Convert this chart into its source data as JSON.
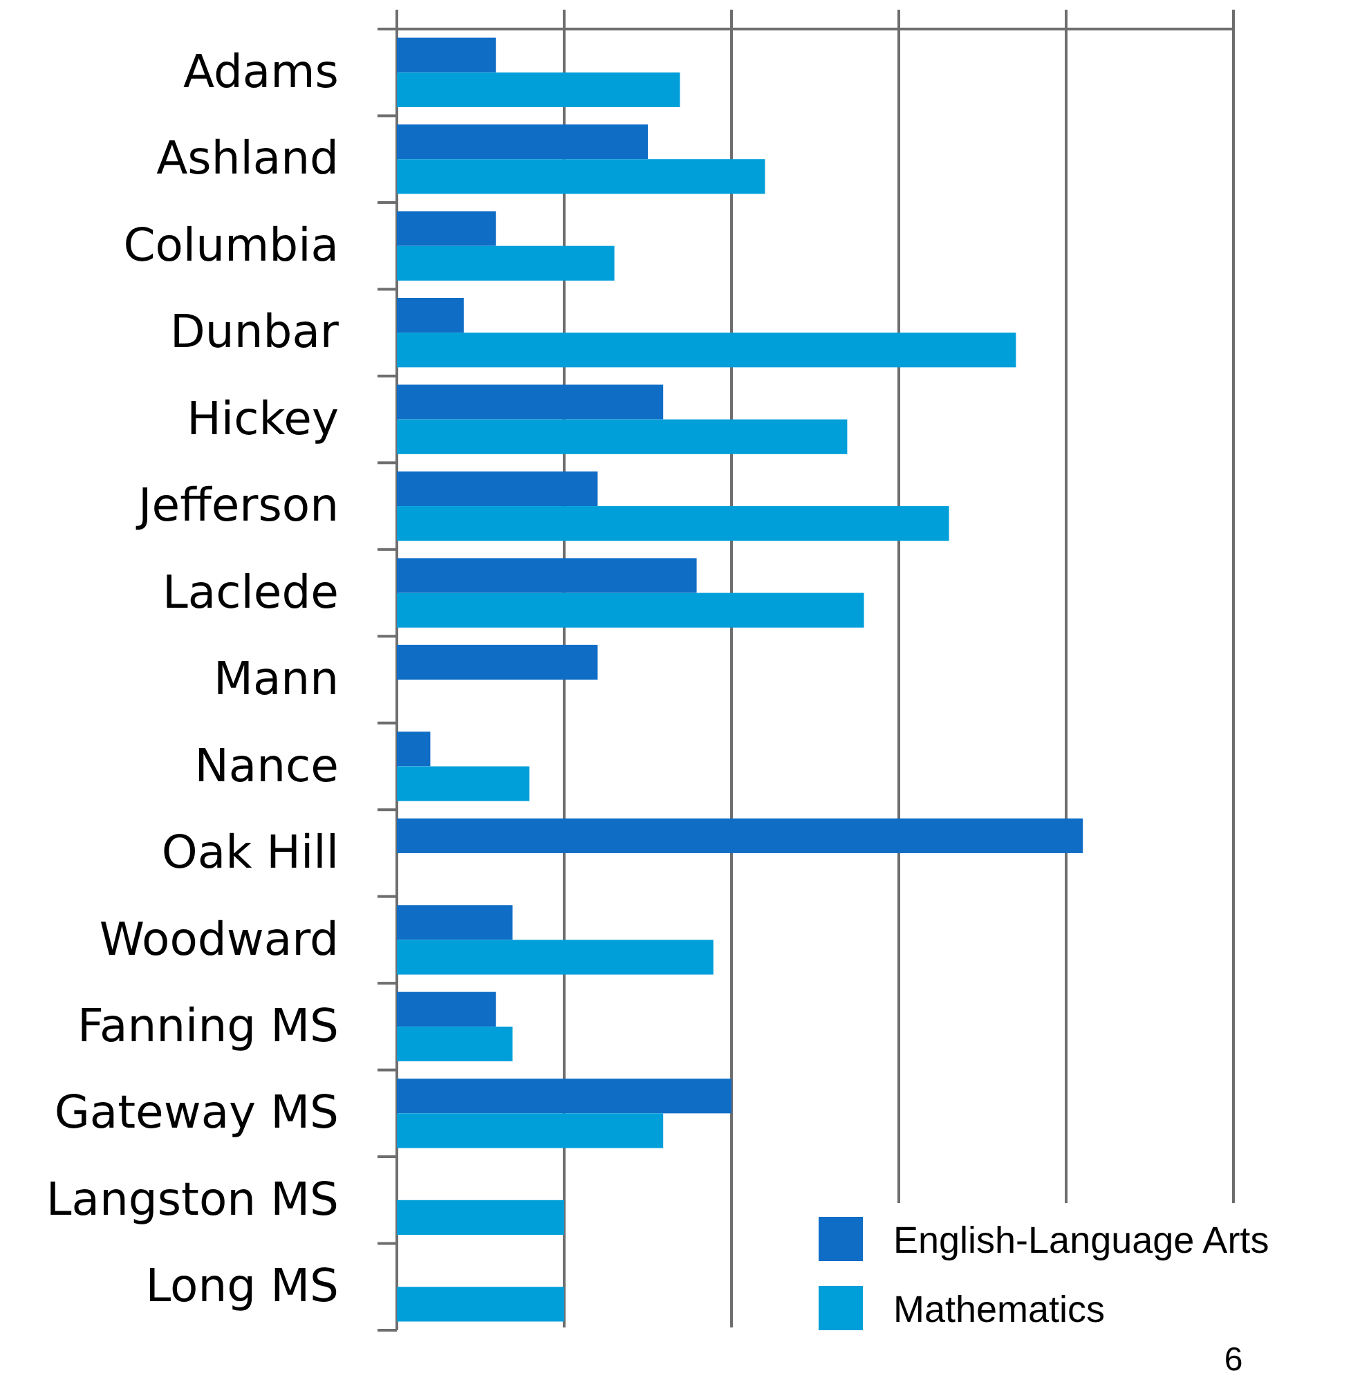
{
  "chart_data": {
    "type": "bar",
    "orientation": "horizontal",
    "categories": [
      "Adams",
      "Ashland",
      "Columbia",
      "Dunbar",
      "Hickey",
      "Jefferson",
      "Laclede",
      "Mann",
      "Nance",
      "Oak Hill",
      "Woodward",
      "Fanning MS",
      "Gateway MS",
      "Langston MS",
      "Long MS"
    ],
    "series": [
      {
        "name": "English-Language Arts",
        "color": "#0f6dc6",
        "values": [
          0.71,
          1.8,
          0.71,
          0.48,
          1.91,
          1.44,
          2.15,
          1.44,
          0.24,
          4.92,
          0.83,
          0.71,
          2.4,
          null,
          null
        ]
      },
      {
        "name": "Mathematics",
        "color": "#009fda",
        "values": [
          2.03,
          2.64,
          1.56,
          4.44,
          3.23,
          3.96,
          3.35,
          null,
          0.95,
          null,
          2.27,
          0.83,
          1.91,
          1.2,
          1.2
        ]
      }
    ],
    "xlim": [
      0,
      6
    ],
    "xticks": [
      {
        "value": 0,
        "label": null
      },
      {
        "value": 1.2,
        "label": null
      },
      {
        "value": 2.4,
        "label": null
      },
      {
        "value": 3.6,
        "label": null
      },
      {
        "value": 4.8,
        "label": null
      },
      6
    ],
    "grid": "x",
    "legend": "bottom right"
  }
}
